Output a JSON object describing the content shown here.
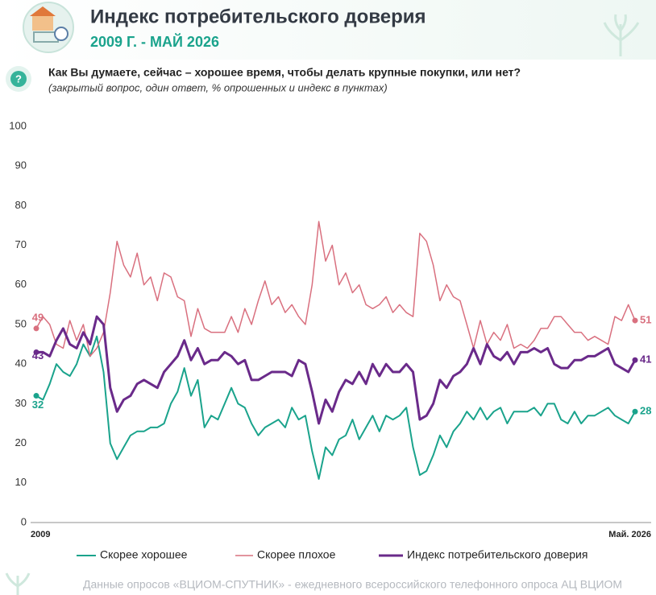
{
  "chart_data": {
    "type": "line",
    "title": "Индекс потребительского доверия",
    "subtitle": "2009 Г. - МАЙ 2026",
    "question": "Как Вы думаете, сейчас – хорошее время, чтобы делать крупные покупки, или нет?",
    "note": "(закрытый вопрос, один ответ, % опрошенных и индекс в пунктах)",
    "source": "Данные опросов «ВЦИОМ-СПУТНИК» - ежедневного всероссийского телефонного опроса АЦ ВЦИОМ",
    "categories": [
      "2009",
      null,
      null,
      null,
      null,
      null,
      null,
      null,
      null,
      null,
      null,
      null,
      null,
      null,
      null,
      null,
      null,
      null,
      null,
      null,
      null,
      null,
      null,
      null,
      null,
      null,
      null,
      null,
      null,
      null,
      null,
      null,
      null,
      null,
      null,
      null,
      null,
      null,
      null,
      null,
      null,
      null,
      null,
      null,
      null,
      null,
      null,
      null,
      null,
      null,
      null,
      null,
      null,
      null,
      null,
      null,
      null,
      null,
      null,
      null,
      null,
      null,
      null,
      null,
      null,
      null,
      null,
      null,
      null,
      null,
      null,
      null,
      null,
      null,
      null,
      null,
      null,
      null,
      null,
      null,
      null,
      null,
      null,
      null,
      null,
      null,
      null,
      null,
      null,
      "Май. 2026"
    ],
    "ylim": [
      0,
      100
    ],
    "yticks": [
      0,
      10,
      20,
      30,
      40,
      50,
      60,
      70,
      80,
      90,
      100
    ],
    "grid": false,
    "series": [
      {
        "name": "Скорее хорошее",
        "color": "#1aa38c",
        "width": 2,
        "values": [
          32,
          31,
          35,
          40,
          38,
          37,
          40,
          45,
          42,
          47,
          38,
          20,
          16,
          19,
          22,
          23,
          23,
          24,
          24,
          25,
          30,
          33,
          39,
          32,
          36,
          24,
          27,
          26,
          30,
          34,
          30,
          29,
          25,
          22,
          24,
          25,
          26,
          24,
          29,
          26,
          27,
          18,
          11,
          19,
          17,
          21,
          22,
          26,
          21,
          24,
          27,
          23,
          27,
          26,
          27,
          29,
          19,
          12,
          13,
          17,
          22,
          19,
          23,
          25,
          28,
          26,
          29,
          26,
          28,
          29,
          25,
          28,
          28,
          28,
          29,
          27,
          30,
          30,
          26,
          25,
          28,
          25,
          27,
          27,
          28,
          29,
          27,
          26,
          25,
          28
        ]
      },
      {
        "name": "Скорее плохое",
        "color": "#d9707f",
        "width": 1.5,
        "values": [
          49,
          52,
          50,
          45,
          44,
          51,
          46,
          50,
          42,
          44,
          48,
          58,
          71,
          65,
          62,
          68,
          60,
          62,
          56,
          63,
          62,
          57,
          56,
          47,
          54,
          49,
          48,
          48,
          48,
          52,
          48,
          54,
          50,
          56,
          61,
          55,
          57,
          53,
          55,
          52,
          50,
          60,
          76,
          66,
          70,
          60,
          63,
          58,
          60,
          55,
          54,
          55,
          57,
          53,
          55,
          53,
          52,
          73,
          71,
          65,
          56,
          60,
          57,
          56,
          50,
          44,
          51,
          45,
          48,
          46,
          50,
          44,
          45,
          44,
          46,
          49,
          49,
          52,
          52,
          50,
          48,
          48,
          46,
          47,
          46,
          45,
          52,
          51,
          55,
          51
        ]
      },
      {
        "name": "Индекс потребительского доверия",
        "color": "#6a2a8a",
        "width": 3,
        "values": [
          43,
          43,
          42,
          46,
          49,
          45,
          44,
          48,
          45,
          52,
          50,
          34,
          28,
          31,
          32,
          35,
          36,
          35,
          34,
          38,
          40,
          42,
          46,
          41,
          44,
          40,
          41,
          41,
          43,
          42,
          40,
          41,
          36,
          36,
          37,
          38,
          38,
          38,
          37,
          41,
          40,
          33,
          25,
          31,
          28,
          33,
          36,
          35,
          38,
          35,
          40,
          37,
          40,
          38,
          38,
          40,
          38,
          26,
          27,
          30,
          36,
          34,
          37,
          38,
          40,
          44,
          40,
          45,
          42,
          41,
          43,
          40,
          43,
          43,
          44,
          43,
          44,
          40,
          39,
          39,
          41,
          41,
          42,
          42,
          43,
          44,
          40,
          39,
          38,
          41
        ]
      }
    ]
  }
}
